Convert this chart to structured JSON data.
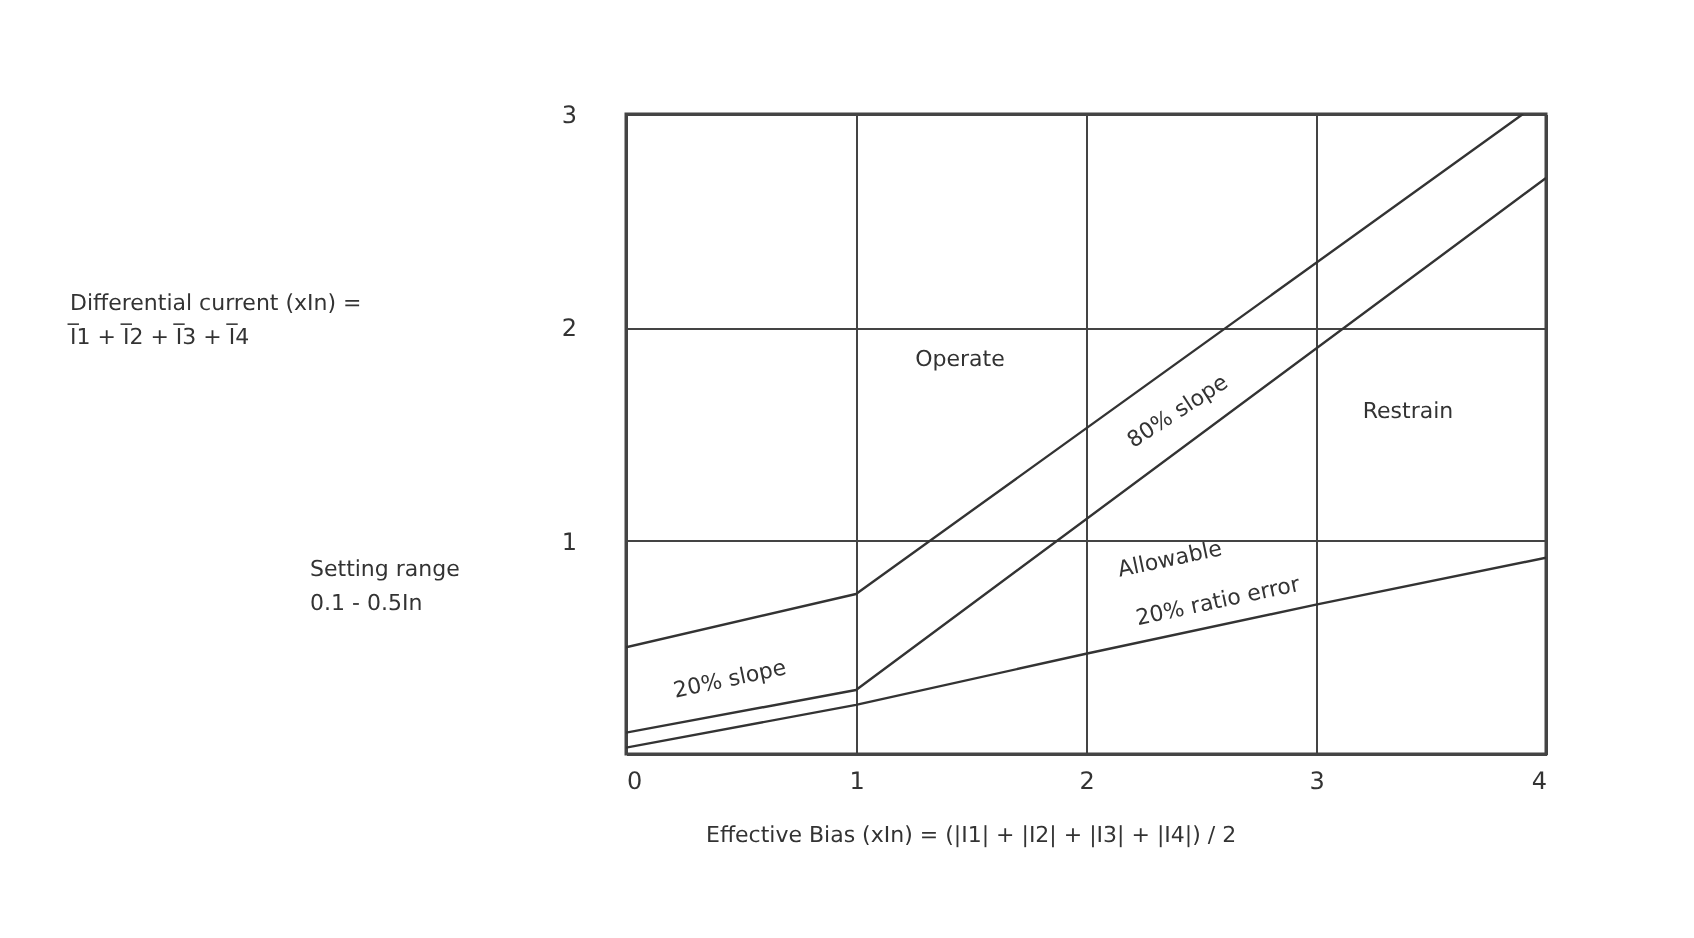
{
  "chart_data": {
    "type": "line",
    "xlabel": "Effective Bias (xIn) = (|I1| + |I2| + |I3| + |I4|) / 2",
    "series": [
      {
        "color": "#333333",
        "x": [
          0,
          1,
          3.9
        ],
        "values": [
          0.5,
          0.75,
          3
        ]
      },
      {
        "color": "#333333",
        "x": [
          0,
          1,
          4
        ],
        "values": [
          0.1,
          0.3,
          2.7
        ]
      },
      {
        "color": "#333333",
        "x": [
          0,
          1,
          2,
          3,
          4
        ],
        "values": [
          0.03,
          0.23,
          0.47,
          0.7,
          0.92
        ]
      }
    ],
    "xlim": [
      0,
      4
    ],
    "xticks": [
      0,
      1,
      2,
      3,
      4
    ],
    "ylim": [
      0,
      3
    ],
    "yticks": [
      1,
      2,
      3,
      {
        "value": 0,
        "label": null
      }
    ],
    "grid": true,
    "marker": "none",
    "line_style": "solid",
    "annotations": [
      "Operate",
      "Restrain",
      "80% slope",
      "20% slope",
      "Allowable",
      "20% ratio error",
      "Differential current (xIn) =\nI̅1 + I̅2 + I̅3 + I̅4",
      "Setting range\n0.1 - 0.5In"
    ]
  }
}
